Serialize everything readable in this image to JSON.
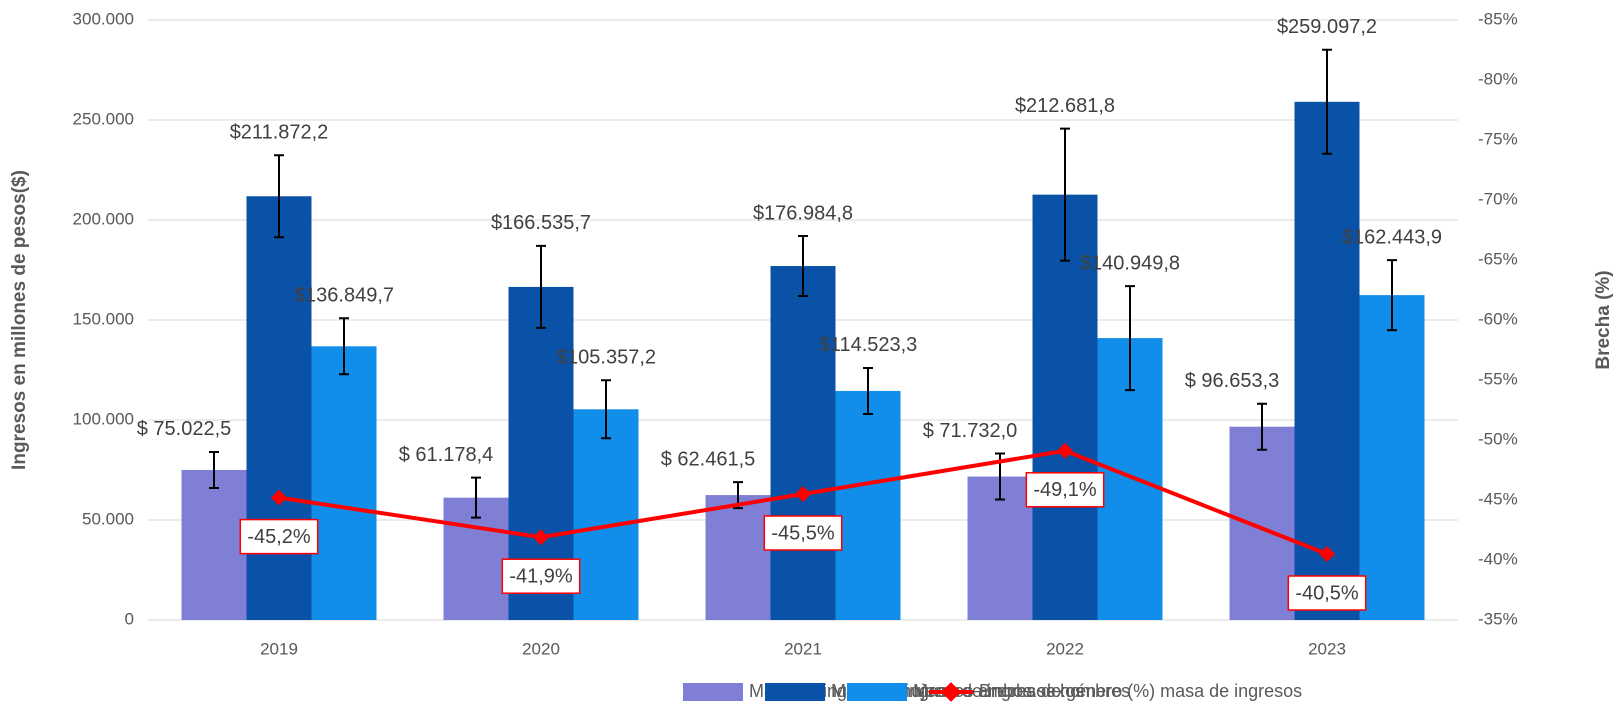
{
  "chart_data": {
    "type": "bar",
    "categories": [
      "2019",
      "2020",
      "2021",
      "2022",
      "2023"
    ],
    "ylabel": "Ingresos en millones de pesos($)",
    "y2label": "Brecha (%)",
    "ylim": [
      0,
      300000
    ],
    "yticks": [
      0,
      {
        "value": 50000,
        "label": "50.000"
      },
      {
        "value": 100000,
        "label": "100.000"
      },
      {
        "value": 150000,
        "label": "150.000"
      },
      {
        "value": 200000,
        "label": "200.000"
      },
      {
        "value": 250000,
        "label": "250.000"
      },
      {
        "value": 300000,
        "label": "300.000"
      }
    ],
    "y2lim": [
      -35,
      -85
    ],
    "y2ticks": [
      {
        "value": -35,
        "label": "-35%"
      },
      {
        "value": -40,
        "label": "-40%"
      },
      {
        "value": -45,
        "label": "-45%"
      },
      {
        "value": -50,
        "label": "-50%"
      },
      {
        "value": -55,
        "label": "-55%"
      },
      {
        "value": -60,
        "label": "-60%"
      },
      {
        "value": -65,
        "label": "-65%"
      },
      {
        "value": -70,
        "label": "-70%"
      },
      {
        "value": -75,
        "label": "-75%"
      },
      {
        "value": -80,
        "label": "-80%"
      },
      {
        "value": -85,
        "label": "-85%"
      }
    ],
    "grid": true,
    "legend": "bottom",
    "series": [
      {
        "name": "Masa de ingresos mujeres",
        "type": "bar",
        "color": "#7f7fd6",
        "values": [
          75022.5,
          61178.4,
          62461.5,
          71732.0,
          96653.3
        ],
        "value_labels": [
          "$ 75.022,5",
          "$ 61.178,4",
          "$ 62.461,5",
          "$ 71.732,0",
          "$ 96.653,3"
        ],
        "errors": [
          9000,
          10000,
          6500,
          11500,
          11500
        ]
      },
      {
        "name": "Masa de ingresos ambos sexos",
        "type": "bar",
        "color": "#0a52a8",
        "values": [
          211872.2,
          166535.7,
          176984.8,
          212681.8,
          259097.2
        ],
        "value_labels": [
          "$211.872,2",
          "$166.535,7",
          "$176.984,8",
          "$212.681,8",
          "$259.097,2"
        ],
        "errors": [
          20500,
          20500,
          15000,
          33000,
          26000
        ]
      },
      {
        "name": "Masa de ingresos hombres",
        "type": "bar",
        "color": "#118dea",
        "values": [
          136849.7,
          105357.2,
          114523.3,
          140949.8,
          162443.9
        ],
        "value_labels": [
          "$136.849,7",
          "$105.357,2",
          "$114.523,3",
          "$140.949,8",
          "$162.443,9"
        ],
        "errors": [
          14000,
          14500,
          11500,
          26000,
          17500
        ]
      },
      {
        "name": "Brecha de género (%) masa de ingresos",
        "type": "line",
        "axis": "y2",
        "color": "#ff0000",
        "values": [
          -45.2,
          -41.9,
          -45.5,
          -49.1,
          -40.5
        ],
        "value_labels": [
          "-45,2%",
          "-41,9%",
          "-45,5%",
          "-49,1%",
          "-40,5%"
        ]
      }
    ]
  }
}
